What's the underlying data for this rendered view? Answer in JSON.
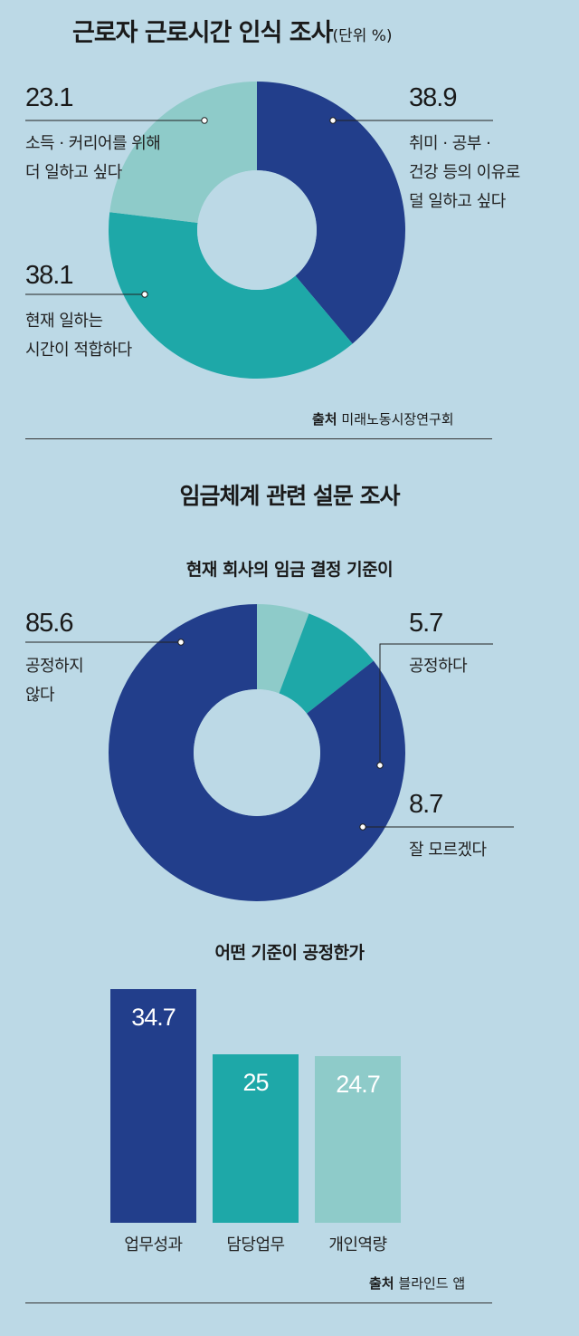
{
  "survey1": {
    "title": "근로자 근로시간 인식 조사",
    "unit": "(단위 %)",
    "source_prefix": "출처",
    "source_name": "미래노동시장연구회"
  },
  "survey2": {
    "title": "임금체계 관련 설문 조사",
    "donut_title": "현재 회사의 임금 결정 기준이",
    "bar_title": "어떤 기준이 공정한가",
    "source_prefix": "출처",
    "source_name": "블라인드 앱"
  },
  "chart_data": [
    {
      "type": "pie",
      "title": "근로자 근로시간 인식 조사",
      "unit": "%",
      "slices": [
        {
          "value": 38.9,
          "label_lines": [
            "취미 · 공부 ·",
            "건강 등의 이유로",
            "덜 일하고 싶다"
          ],
          "color": "#223e8b"
        },
        {
          "value": 38.1,
          "label_lines": [
            "현재 일하는",
            "시간이 적합하다"
          ],
          "color": "#1ea8a8"
        },
        {
          "value": 23.1,
          "label_lines": [
            "소득 · 커리어를 위해",
            "더 일하고 싶다"
          ],
          "color": "#8ecbc9"
        }
      ]
    },
    {
      "type": "pie",
      "title": "현재 회사의 임금 결정 기준이",
      "unit": "%",
      "slices": [
        {
          "value": 5.7,
          "label_lines": [
            "공정하다"
          ],
          "color": "#8ecbc9"
        },
        {
          "value": 8.7,
          "label_lines": [
            "잘 모르겠다"
          ],
          "color": "#1ea8a8"
        },
        {
          "value": 85.6,
          "label_lines": [
            "공정하지",
            "않다"
          ],
          "color": "#223e8b"
        }
      ]
    },
    {
      "type": "bar",
      "title": "어떤 기준이 공정한가",
      "unit": "%",
      "categories": [
        "업무성과",
        "담당업무",
        "개인역량"
      ],
      "values": [
        34.7,
        25,
        24.7
      ],
      "value_labels": [
        "34.7",
        "25",
        "24.7"
      ],
      "colors": [
        "#223e8b",
        "#1ea8a8",
        "#8ecbc9"
      ]
    }
  ]
}
